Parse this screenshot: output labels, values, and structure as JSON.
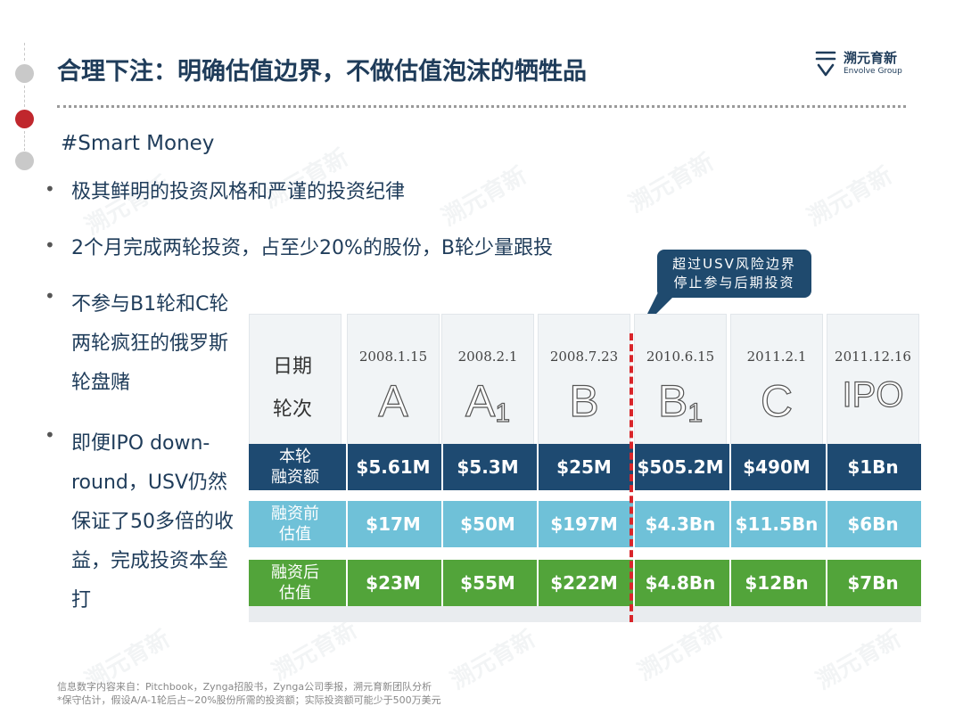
{
  "title": "合理下注：明确估值边界，不做估值泡沫的牺牲品",
  "logo": {
    "cn": "溯元育新",
    "en": "Envolve Group"
  },
  "tag": "#Smart Money",
  "bullets": [
    "极其鲜明的投资风格和严谨的投资纪律",
    "2个月完成两轮投资，占至少20%的股份，B轮少量跟投",
    "不参与B1轮和C轮两轮疯狂的俄罗斯轮盘赌",
    "即便IPO down-round，USV仍然保证了50多倍的收益，完成投资本垒打"
  ],
  "bullet_symbol": "•",
  "callout": {
    "line1": "超过USV风险边界",
    "line2": "停止参与后期投资"
  },
  "table": {
    "header_date": "日期",
    "header_round": "轮次",
    "columns": [
      {
        "date": "2008.1.15",
        "round": "A",
        "sub": ""
      },
      {
        "date": "2008.2.1",
        "round": "A",
        "sub": "1"
      },
      {
        "date": "2008.7.23",
        "round": "B",
        "sub": ""
      },
      {
        "date": "2010.6.15",
        "round": "B",
        "sub": "1"
      },
      {
        "date": "2011.2.1",
        "round": "C",
        "sub": ""
      },
      {
        "date": "2011.12.16",
        "round": "IPO",
        "sub": ""
      }
    ],
    "rows": [
      {
        "label1": "本轮",
        "label2": "融资额",
        "color": "#1e4a71",
        "values": [
          "$5.61M",
          "$5.3M",
          "$25M",
          "$505.2M",
          "$490M",
          "$1Bn"
        ]
      },
      {
        "label1": "融资前",
        "label2": "估值",
        "color": "#6fc1d8",
        "values": [
          "$17M",
          "$50M",
          "$197M",
          "$4.3Bn",
          "$11.5Bn",
          "$6Bn"
        ]
      },
      {
        "label1": "融资后",
        "label2": "估值",
        "color": "#52a43a",
        "values": [
          "$23M",
          "$55M",
          "$222M",
          "$4.8Bn",
          "$12Bn",
          "$7Bn"
        ]
      }
    ]
  },
  "footnotes": [
    "信息数字内容来自：Pitchbook，Zynga招股书，Zynga公司季报，溯元育新团队分析",
    "*保守估计，假设A/A-1轮后占~20%股份所需的投资额；实际投资额可能少于500万美元"
  ],
  "colors": {
    "accent_red": "#c0272d",
    "navy": "#1e4a71",
    "sky": "#6fc1d8",
    "green": "#52a43a"
  }
}
